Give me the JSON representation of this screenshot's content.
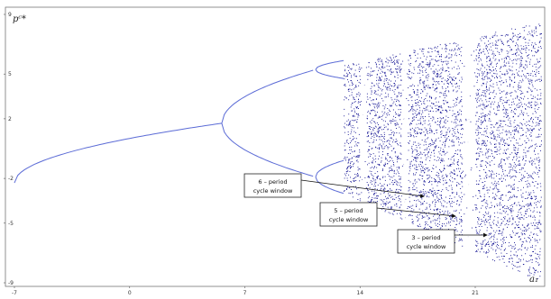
{
  "chart_data": {
    "type": "scatter",
    "title": "",
    "xlabel": "a₁",
    "ylabel": "pᶜ*",
    "xlim": [
      -7,
      25
    ],
    "ylim": [
      -9,
      9
    ],
    "x_ticks": [
      "-7",
      "0",
      "7",
      "14",
      "21"
    ],
    "y_ticks": [
      "-9",
      "-5",
      "-2",
      "2",
      "5",
      "9"
    ],
    "grid": false,
    "legend": "none",
    "point_color": "#00008b",
    "line_color": "#5b6bd6",
    "series": [
      {
        "values": [
          {
            "x": -7,
            "y": -2.3
          },
          {
            "x": -5,
            "y": -0.9
          },
          {
            "x": -2,
            "y": 0.2
          },
          {
            "x": 0,
            "y": 0.8
          },
          {
            "x": 2,
            "y": 1.2
          },
          {
            "x": 4,
            "y": 1.55
          },
          {
            "x": 5.6,
            "y": 1.7
          },
          {
            "x": 7,
            "y": 4.1
          },
          {
            "x": 7,
            "y": -0.1
          },
          {
            "x": 11.3,
            "y": 5.3
          },
          {
            "x": 11.3,
            "y": -1.9
          },
          {
            "x": 13,
            "y": 5.9
          },
          {
            "x": 13,
            "y": 4.1
          },
          {
            "x": 13,
            "y": -0.6
          },
          {
            "x": 13,
            "y": -3.0
          }
        ]
      }
    ],
    "annotations": [
      {
        "lines": [
          "6 – period",
          "cycle window"
        ],
        "target": {
          "x": 14.5,
          "y": -3.9
        }
      },
      {
        "lines": [
          "5 – period",
          "cycle window"
        ],
        "target": {
          "x": 16.5,
          "y": -5.8
        }
      },
      {
        "lines": [
          "3 – period",
          "cycle window"
        ],
        "target": {
          "x": 18.5,
          "y": -7.3
        }
      }
    ]
  }
}
